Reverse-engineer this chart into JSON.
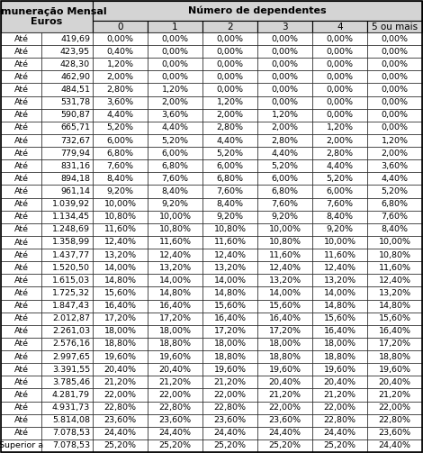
{
  "title_line1": "Remuneração Mensal",
  "title_line2": "Euros",
  "header_right": "Número de dependentes",
  "col_headers": [
    "0",
    "1",
    "2",
    "3",
    "4",
    "5 ou mais"
  ],
  "rows": [
    [
      "Até",
      "419,69",
      "0,00%",
      "0,00%",
      "0,00%",
      "0,00%",
      "0,00%",
      "0,00%"
    ],
    [
      "Até",
      "423,95",
      "0,40%",
      "0,00%",
      "0,00%",
      "0,00%",
      "0,00%",
      "0,00%"
    ],
    [
      "Até",
      "428,30",
      "1,20%",
      "0,00%",
      "0,00%",
      "0,00%",
      "0,00%",
      "0,00%"
    ],
    [
      "Até",
      "462,90",
      "2,00%",
      "0,00%",
      "0,00%",
      "0,00%",
      "0,00%",
      "0,00%"
    ],
    [
      "Até",
      "484,51",
      "2,80%",
      "1,20%",
      "0,00%",
      "0,00%",
      "0,00%",
      "0,00%"
    ],
    [
      "Até",
      "531,78",
      "3,60%",
      "2,00%",
      "1,20%",
      "0,00%",
      "0,00%",
      "0,00%"
    ],
    [
      "Até",
      "590,87",
      "4,40%",
      "3,60%",
      "2,00%",
      "1,20%",
      "0,00%",
      "0,00%"
    ],
    [
      "Até",
      "665,71",
      "5,20%",
      "4,40%",
      "2,80%",
      "2,00%",
      "1,20%",
      "0,00%"
    ],
    [
      "Até",
      "732,67",
      "6,00%",
      "5,20%",
      "4,40%",
      "2,80%",
      "2,00%",
      "1,20%"
    ],
    [
      "Até",
      "779,94",
      "6,80%",
      "6,00%",
      "5,20%",
      "4,40%",
      "2,80%",
      "2,00%"
    ],
    [
      "Até",
      "831,16",
      "7,60%",
      "6,80%",
      "6,00%",
      "5,20%",
      "4,40%",
      "3,60%"
    ],
    [
      "Até",
      "894,18",
      "8,40%",
      "7,60%",
      "6,80%",
      "6,00%",
      "5,20%",
      "4,40%"
    ],
    [
      "Até",
      "961,14",
      "9,20%",
      "8,40%",
      "7,60%",
      "6,80%",
      "6,00%",
      "5,20%"
    ],
    [
      "Até",
      "1.039,92",
      "10,00%",
      "9,20%",
      "8,40%",
      "7,60%",
      "7,60%",
      "6,80%"
    ],
    [
      "Até",
      "1.134,45",
      "10,80%",
      "10,00%",
      "9,20%",
      "9,20%",
      "8,40%",
      "7,60%"
    ],
    [
      "Até",
      "1.248,69",
      "11,60%",
      "10,80%",
      "10,80%",
      "10,00%",
      "9,20%",
      "8,40%"
    ],
    [
      "Até",
      "1.358,99",
      "12,40%",
      "11,60%",
      "11,60%",
      "10,80%",
      "10,00%",
      "10,00%"
    ],
    [
      "Até",
      "1.437,77",
      "13,20%",
      "12,40%",
      "12,40%",
      "11,60%",
      "11,60%",
      "10,80%"
    ],
    [
      "Até",
      "1.520,50",
      "14,00%",
      "13,20%",
      "13,20%",
      "12,40%",
      "12,40%",
      "11,60%"
    ],
    [
      "Até",
      "1.615,03",
      "14,80%",
      "14,00%",
      "14,00%",
      "13,20%",
      "13,20%",
      "12,40%"
    ],
    [
      "Até",
      "1.725,32",
      "15,60%",
      "14,80%",
      "14,80%",
      "14,00%",
      "14,00%",
      "13,20%"
    ],
    [
      "Até",
      "1.847,43",
      "16,40%",
      "16,40%",
      "15,60%",
      "15,60%",
      "14,80%",
      "14,80%"
    ],
    [
      "Até",
      "2.012,87",
      "17,20%",
      "17,20%",
      "16,40%",
      "16,40%",
      "15,60%",
      "15,60%"
    ],
    [
      "Até",
      "2.261,03",
      "18,00%",
      "18,00%",
      "17,20%",
      "17,20%",
      "16,40%",
      "16,40%"
    ],
    [
      "Até",
      "2.576,16",
      "18,80%",
      "18,80%",
      "18,00%",
      "18,00%",
      "18,00%",
      "17,20%"
    ],
    [
      "Até",
      "2.997,65",
      "19,60%",
      "19,60%",
      "18,80%",
      "18,80%",
      "18,80%",
      "18,80%"
    ],
    [
      "Até",
      "3.391,55",
      "20,40%",
      "20,40%",
      "19,60%",
      "19,60%",
      "19,60%",
      "19,60%"
    ],
    [
      "Até",
      "3.785,46",
      "21,20%",
      "21,20%",
      "21,20%",
      "20,40%",
      "20,40%",
      "20,40%"
    ],
    [
      "Até",
      "4.281,79",
      "22,00%",
      "22,00%",
      "22,00%",
      "21,20%",
      "21,20%",
      "21,20%"
    ],
    [
      "Até",
      "4.931,73",
      "22,80%",
      "22,80%",
      "22,80%",
      "22,00%",
      "22,00%",
      "22,00%"
    ],
    [
      "Até",
      "5.814,08",
      "23,60%",
      "23,60%",
      "23,60%",
      "23,60%",
      "22,80%",
      "22,80%"
    ],
    [
      "Até",
      "7.078,53",
      "24,40%",
      "24,40%",
      "24,40%",
      "24,40%",
      "24,40%",
      "23,60%"
    ],
    [
      "Superior a",
      "7.078,53",
      "25,20%",
      "25,20%",
      "25,20%",
      "25,20%",
      "25,20%",
      "24,40%"
    ]
  ],
  "bg_header": "#d4d4d4",
  "bg_white": "#ffffff",
  "border_color": "#000000",
  "font_size": 6.8,
  "header_font_size": 8.0,
  "sub_header_font_size": 7.5
}
